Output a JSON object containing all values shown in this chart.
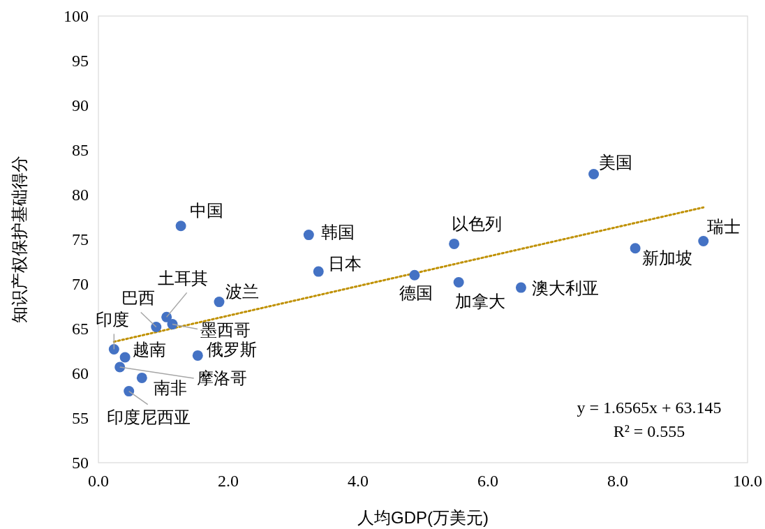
{
  "chart_data": {
    "type": "scatter",
    "xlabel": "人均GDP(万美元)",
    "ylabel": "知识产权保护基础得分",
    "xlim": [
      0,
      10
    ],
    "ylim": [
      50,
      100
    ],
    "xticks": [
      {
        "value": 0,
        "label": "0.0"
      },
      {
        "value": 2,
        "label": "2.0"
      },
      {
        "value": 4,
        "label": "4.0"
      },
      {
        "value": 6,
        "label": "6.0"
      },
      {
        "value": 8,
        "label": "8.0"
      },
      {
        "value": 10,
        "label": "10.0"
      }
    ],
    "yticks": [
      50,
      55,
      60,
      65,
      70,
      75,
      80,
      85,
      90,
      95,
      100
    ],
    "grid": false,
    "marker": "circle",
    "series": [
      {
        "type": "scatter",
        "color": "#4472c4",
        "x": [
          1.27,
          3.24,
          3.39,
          5.48,
          4.87,
          5.55,
          6.51,
          7.63,
          8.27,
          9.32,
          1.86,
          1.05,
          1.14,
          0.89,
          0.24,
          0.41,
          1.53,
          0.33,
          0.67,
          0.47
        ],
        "values": [
          76.5,
          75.5,
          71.4,
          74.5,
          71.0,
          70.2,
          69.6,
          82.3,
          74.0,
          74.8,
          68.0,
          66.3,
          65.5,
          65.2,
          62.7,
          61.8,
          62.0,
          60.7,
          59.5,
          58.0
        ]
      },
      {
        "type": "line",
        "color": "#bf9000",
        "line_style": "dotted",
        "marker": "none",
        "x": [
          0.24,
          9.32
        ],
        "values": [
          63.54,
          78.58
        ]
      }
    ],
    "annotations": [
      {
        "text": "中国",
        "x": 1.27,
        "y": 76.5
      },
      {
        "text": "韩国",
        "x": 3.24,
        "y": 75.5
      },
      {
        "text": "日本",
        "x": 3.39,
        "y": 71.4
      },
      {
        "text": "以色列",
        "x": 5.48,
        "y": 74.5
      },
      {
        "text": "德国",
        "x": 4.87,
        "y": 71.0
      },
      {
        "text": "加拿大",
        "x": 5.55,
        "y": 70.2
      },
      {
        "text": "澳大利亚",
        "x": 6.51,
        "y": 69.6
      },
      {
        "text": "美国",
        "x": 7.63,
        "y": 82.3
      },
      {
        "text": "新加坡",
        "x": 8.27,
        "y": 74.0
      },
      {
        "text": "瑞士",
        "x": 9.32,
        "y": 74.8
      },
      {
        "text": "波兰",
        "x": 1.86,
        "y": 68.0
      },
      {
        "text": "土耳其",
        "x": 1.05,
        "y": 66.3
      },
      {
        "text": "墨西哥",
        "x": 1.14,
        "y": 65.5
      },
      {
        "text": "巴西",
        "x": 0.89,
        "y": 65.2
      },
      {
        "text": "印度",
        "x": 0.24,
        "y": 62.7
      },
      {
        "text": "越南",
        "x": 0.41,
        "y": 61.8
      },
      {
        "text": "俄罗斯",
        "x": 1.53,
        "y": 62.0
      },
      {
        "text": "摩洛哥",
        "x": 0.33,
        "y": 60.7
      },
      {
        "text": "南非",
        "x": 0.67,
        "y": 59.5
      },
      {
        "text": "印度尼西亚",
        "x": 0.47,
        "y": 58.0
      },
      "y = 1.6565x + 63.145",
      "R² = 0.555"
    ]
  }
}
